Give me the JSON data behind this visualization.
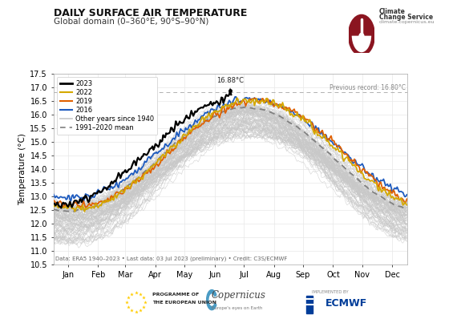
{
  "title": "DAILY SURFACE AIR TEMPERATURE",
  "subtitle": "Global domain (0–360°E, 90°S–90°N)",
  "ylabel": "Temperature (°C)",
  "xlabel_months": [
    "Jan",
    "Feb",
    "Mar",
    "Apr",
    "May",
    "Jun",
    "Jul",
    "Aug",
    "Sep",
    "Oct",
    "Nov",
    "Dec"
  ],
  "ylim": [
    10.5,
    17.5
  ],
  "yticks": [
    10.5,
    11.0,
    11.5,
    12.0,
    12.5,
    13.0,
    13.5,
    14.0,
    14.5,
    15.0,
    15.5,
    16.0,
    16.5,
    17.0,
    17.5
  ],
  "previous_record_value": 16.8,
  "previous_record_label": "Previous record: 16.80°C",
  "peak_value": 16.88,
  "peak_label": "16.88°C",
  "peak_day": 183,
  "data_note": "Data: ERA5 1940–2023 • Last data: 03 Jul 2023 (preliminary) • Credit: C3S/ECMWF",
  "color_2023": "#000000",
  "color_2022": "#d4a800",
  "color_2019": "#e06000",
  "color_2016": "#1e5bbf",
  "color_other": "#c8c8c8",
  "color_mean": "#808080",
  "lw_2023": 1.6,
  "lw_2022": 1.3,
  "lw_2019": 1.3,
  "lw_2016": 1.3,
  "lw_other": 0.4,
  "lw_mean": 1.3,
  "background_color": "#ffffff",
  "grid_color": "#e8e8e8"
}
